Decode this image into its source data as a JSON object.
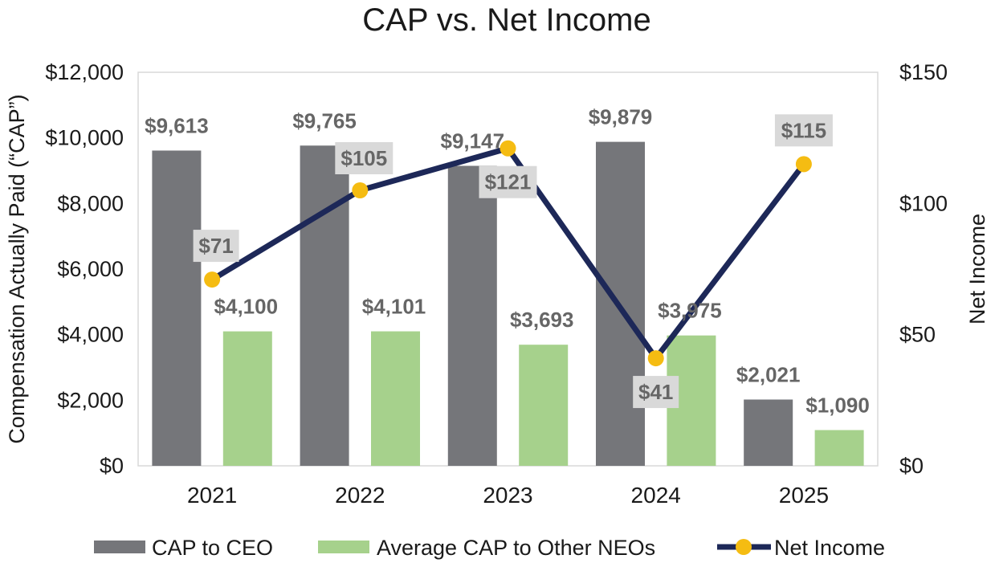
{
  "chart_data": {
    "type": "bar",
    "title": "CAP vs. Net Income",
    "categories": [
      "2021",
      "2022",
      "2023",
      "2024",
      "2025"
    ],
    "ylabel": "Compensation Actually Paid (“CAP”)",
    "y2label": "Net Income",
    "ylim": [
      0,
      12000
    ],
    "y2lim": [
      0,
      150
    ],
    "yticks": [
      "$0",
      "$2,000",
      "$4,000",
      "$6,000",
      "$8,000",
      "$10,000",
      "$12,000"
    ],
    "y2ticks": [
      "$0",
      "$50",
      "$100",
      "$150"
    ],
    "series": [
      {
        "name": "CAP to CEO",
        "type": "bar",
        "axis": "left",
        "color": "#75767a",
        "values": [
          9613,
          9765,
          9147,
          9879,
          2021
        ],
        "labels": [
          "$9,613",
          "$9,765",
          "$9,147",
          "$9,879",
          "$2,021"
        ]
      },
      {
        "name": "Average CAP to Other NEOs",
        "type": "bar",
        "axis": "left",
        "color": "#a6d18c",
        "values": [
          4100,
          4101,
          3693,
          3975,
          1090
        ],
        "labels": [
          "$4,100",
          "$4,101",
          "$3,693",
          "$3,975",
          "$1,090"
        ]
      },
      {
        "name": "Net Income",
        "type": "line",
        "axis": "right",
        "color": "#1d2858",
        "marker_color": "#f5bc12",
        "values": [
          71,
          105,
          121,
          41,
          115
        ],
        "labels": [
          "$71",
          "$105",
          "$121",
          "$41",
          "$115"
        ]
      }
    ],
    "legend": "bottom",
    "grid": false
  }
}
